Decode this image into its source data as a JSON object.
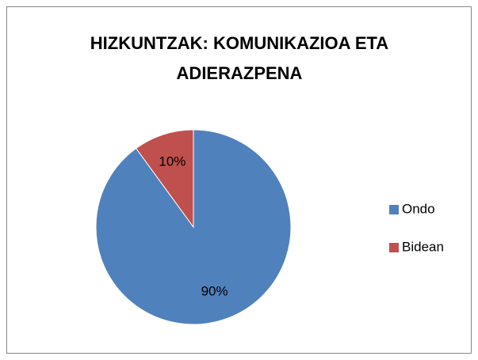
{
  "chart_data": {
    "type": "pie",
    "title": "HIZKUNTZAK: KOMUNIKAZIOA ETA ADIERAZPENA",
    "categories": [
      "Ondo",
      "Bidean"
    ],
    "values": [
      90,
      10
    ],
    "value_labels": [
      "90%",
      "10%"
    ],
    "colors": [
      "#4f81bd",
      "#c0504d"
    ],
    "legend": "right"
  }
}
